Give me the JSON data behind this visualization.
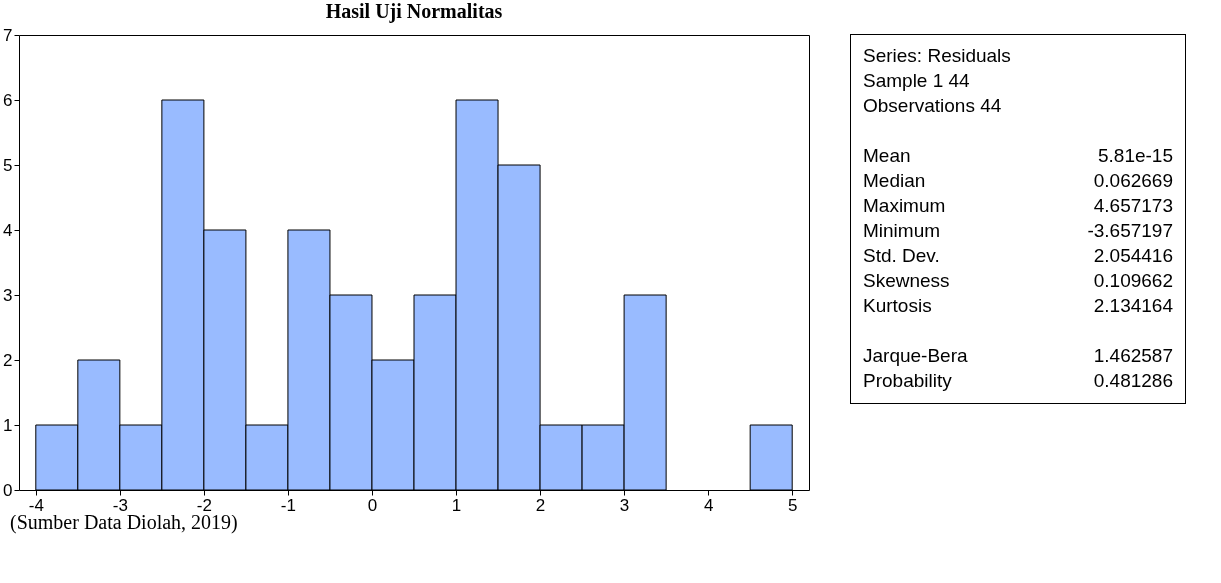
{
  "chart_data": [
    {
      "type": "histogram",
      "title": "Hasil Uji Normalitas",
      "bins": [
        -4,
        -3.5,
        -3,
        -2.5,
        -2,
        -1.5,
        -1,
        -0.5,
        0,
        0.5,
        1,
        1.5,
        2,
        2.5,
        3,
        3.5,
        4,
        4.5,
        5
      ],
      "values": [
        1,
        2,
        1,
        6,
        4,
        1,
        4,
        3,
        2,
        3,
        6,
        5,
        1,
        1,
        3,
        0,
        0,
        1
      ],
      "color": "#99bbff",
      "xlim": [
        -4.2,
        5.2
      ],
      "xticks": [
        -4,
        -3,
        -2,
        -1,
        0,
        1,
        2,
        3,
        4,
        5
      ],
      "ylim": [
        0,
        7
      ],
      "yticks": [
        0,
        1,
        2,
        3,
        4,
        5,
        6,
        7
      ],
      "grid": false,
      "annotations": [
        "(Sumber Data Diolah, 2019)"
      ]
    },
    {
      "type": "other",
      "annotations": [
        "Series: Residuals",
        "Sample 1 44",
        "Observations 44",
        "Mean",
        "5.81e-15",
        "Median",
        "0.062669",
        "Maximum",
        "4.657173",
        "Minimum",
        "-3.657197",
        "Std. Dev.",
        "2.054416",
        "Skewness",
        "0.109662",
        "Kurtosis",
        "2.134164",
        "Jarque-Bera",
        "1.462587",
        "Probability",
        "0.481286"
      ]
    }
  ]
}
